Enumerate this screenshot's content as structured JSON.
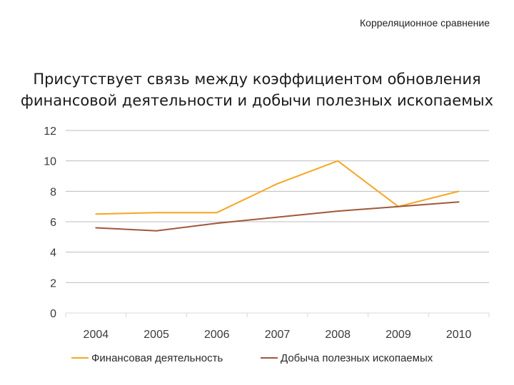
{
  "header": {
    "text": "Корреляционное сравнение"
  },
  "chart_data": {
    "type": "line",
    "title": "Присутствует связь между коэффициентом обновления финансовой деятельности и добычи полезных ископаемых",
    "xlabel": "",
    "ylabel": "",
    "categories": [
      "2004",
      "2005",
      "2006",
      "2007",
      "2008",
      "2009",
      "2010"
    ],
    "y_ticks": [
      "0",
      "2",
      "4",
      "6",
      "8",
      "10",
      "12"
    ],
    "ylim": [
      0,
      12
    ],
    "grid": true,
    "legend_position": "bottom",
    "series": [
      {
        "name": "Финансовая деятельность",
        "color": "#f5a623",
        "values": [
          6.5,
          6.6,
          6.6,
          8.5,
          10.0,
          7.0,
          8.0
        ]
      },
      {
        "name": "Добыча полезных ископаемых",
        "color": "#a0583a",
        "values": [
          5.6,
          5.4,
          5.9,
          6.3,
          6.7,
          7.0,
          7.3
        ]
      }
    ]
  }
}
